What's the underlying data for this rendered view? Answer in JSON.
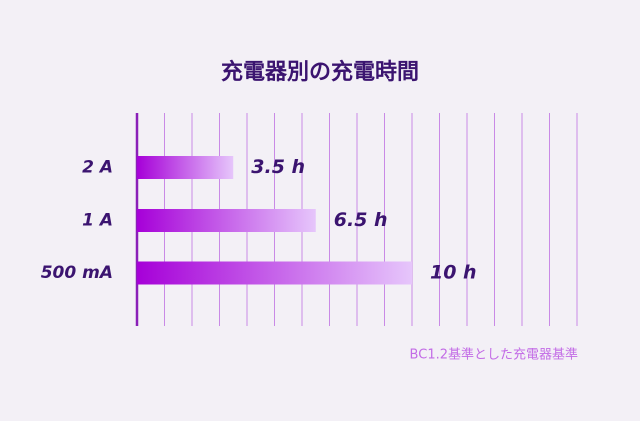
{
  "chart_data": {
    "type": "bar",
    "orientation": "horizontal",
    "title": "充電器別の充電時間",
    "categories": [
      "2 A",
      "1 A",
      "500 mA"
    ],
    "values": [
      3.5,
      6.5,
      10
    ],
    "value_labels": [
      "3.5 h",
      "6.5 h",
      "10 h"
    ],
    "colors": [
      "#a600d8",
      "#e6c6fb"
    ],
    "xlim": [
      0,
      16
    ],
    "xticks": [
      0,
      1,
      2,
      3,
      4,
      5,
      6,
      7,
      8,
      9,
      10,
      11,
      12,
      13,
      14,
      15,
      16
    ],
    "grid": true,
    "note": "BC1.2基準とした充電器基準"
  }
}
